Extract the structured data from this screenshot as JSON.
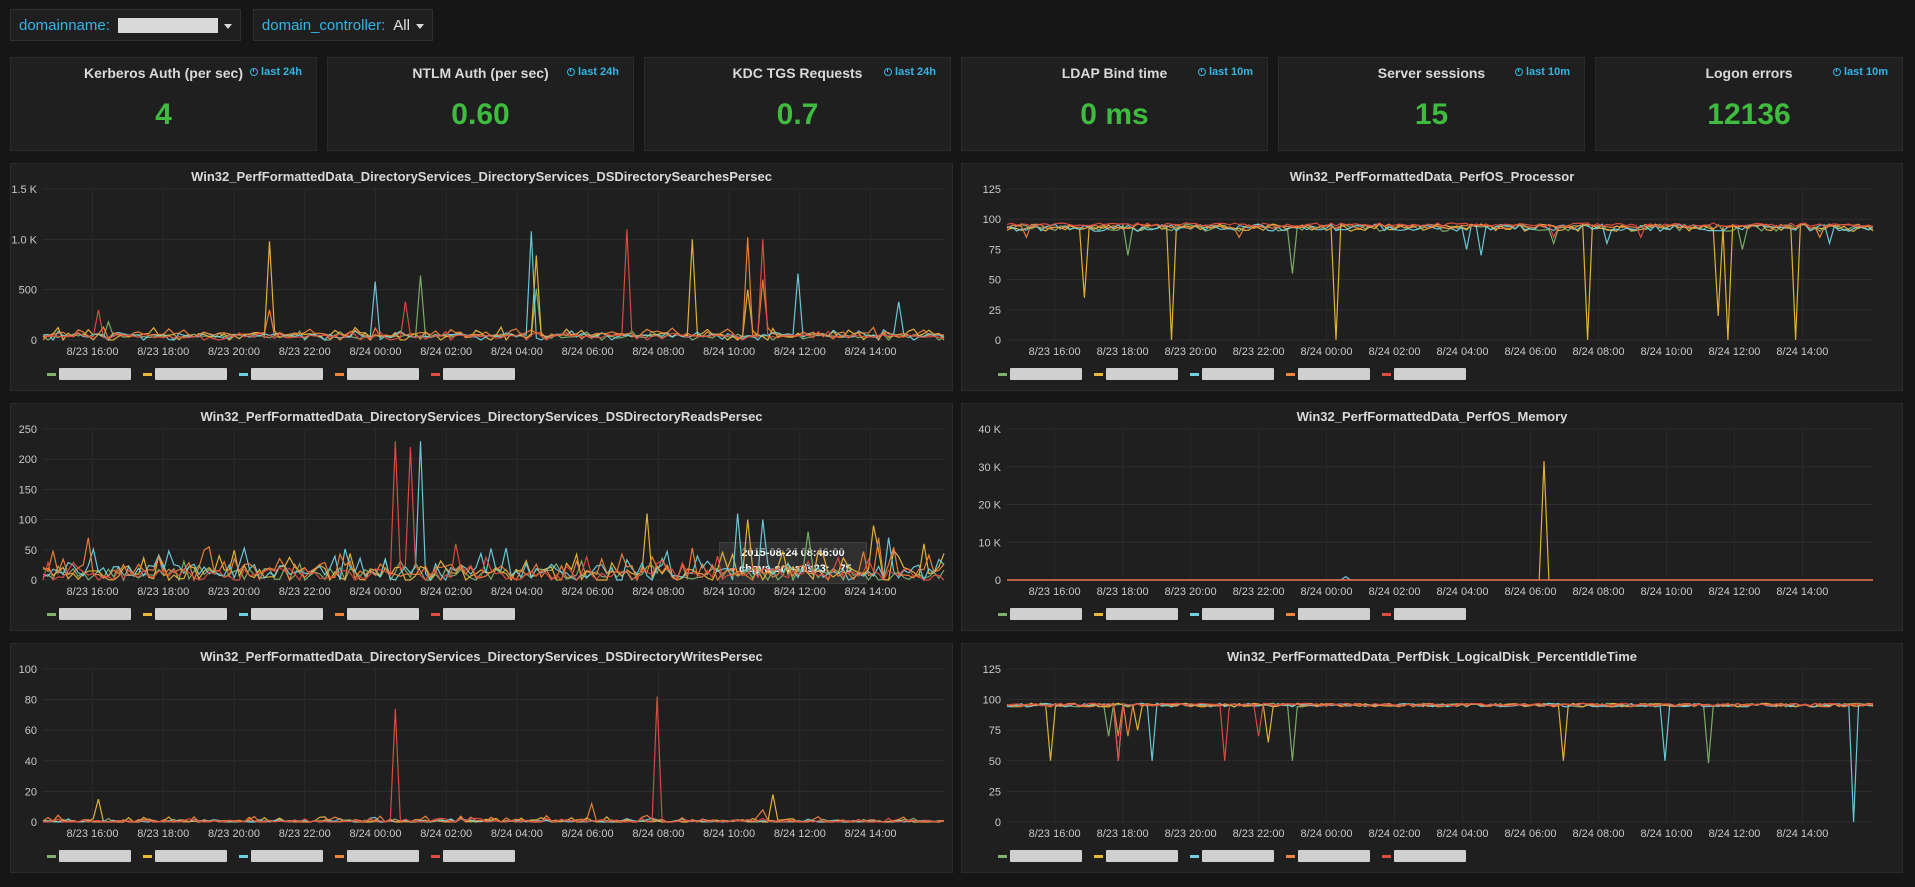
{
  "variables": [
    {
      "label": "domainname:",
      "value": ""
    },
    {
      "label": "domain_controller:",
      "value": "All"
    }
  ],
  "stats": [
    {
      "title": "Kerberos Auth (per sec)",
      "badge": "last 24h",
      "value": "4"
    },
    {
      "title": "NTLM Auth (per sec)",
      "badge": "last 24h",
      "value": "0.60"
    },
    {
      "title": "KDC TGS Requests",
      "badge": "last 24h",
      "value": "0.7"
    },
    {
      "title": "LDAP Bind time",
      "badge": "last 10m",
      "value": "0 ms"
    },
    {
      "title": "Server sessions",
      "badge": "last 10m",
      "value": "15"
    },
    {
      "title": "Logon errors",
      "badge": "last 10m",
      "value": "12136"
    }
  ],
  "colors": {
    "series": [
      "#7eb26d",
      "#eab839",
      "#6ed0e0",
      "#ef843c",
      "#e24d42"
    ],
    "stat_value": "#3fbc3f",
    "accent": "#33b5e5"
  },
  "x_ticks": [
    "8/23 16:00",
    "8/23 18:00",
    "8/23 20:00",
    "8/23 22:00",
    "8/24 00:00",
    "8/24 02:00",
    "8/24 04:00",
    "8/24 06:00",
    "8/24 08:00",
    "8/24 10:00",
    "8/24 12:00",
    "8/24 14:00"
  ],
  "graphs": [
    {
      "title": "Win32_PerfFormattedData_DirectoryServices_DirectoryServices_DSDirectorySearchesPersec",
      "y_ticks": [
        "0",
        "500",
        "1.0 K",
        "1.5 K"
      ],
      "y_max": 1500,
      "base": [
        40,
        50,
        45,
        60,
        35
      ],
      "noise": [
        60,
        80,
        60,
        70,
        50
      ],
      "spikes": [
        [
          [
            0.42,
            640
          ],
          [
            0.55,
            510
          ],
          [
            0.07,
            180
          ]
        ],
        [
          [
            0.25,
            980
          ],
          [
            0.55,
            840
          ],
          [
            0.72,
            1000
          ],
          [
            0.78,
            500
          ]
        ],
        [
          [
            0.54,
            1080
          ],
          [
            0.37,
            580
          ],
          [
            0.84,
            660
          ],
          [
            0.95,
            380
          ]
        ],
        [
          [
            0.78,
            1020
          ],
          [
            0.8,
            600
          ],
          [
            0.25,
            300
          ]
        ],
        [
          [
            0.06,
            300
          ],
          [
            0.65,
            1100
          ],
          [
            0.8,
            1000
          ],
          [
            0.4,
            380
          ]
        ]
      ]
    },
    {
      "title": "Win32_PerfFormattedData_PerfOS_Processor",
      "y_ticks": [
        "0",
        "25",
        "50",
        "75",
        "100",
        "125"
      ],
      "y_max": 125,
      "base": [
        96,
        96,
        96,
        96,
        97
      ],
      "noise": [
        6,
        6,
        6,
        4,
        3
      ],
      "dips": [
        [
          [
            0.14,
            70
          ],
          [
            0.33,
            55
          ],
          [
            0.63,
            80
          ],
          [
            0.85,
            75
          ]
        ],
        [
          [
            0.09,
            35
          ],
          [
            0.19,
            0
          ],
          [
            0.38,
            0
          ],
          [
            0.67,
            0
          ],
          [
            0.83,
            0
          ],
          [
            0.91,
            0
          ],
          [
            0.82,
            20
          ]
        ],
        [
          [
            0.53,
            75
          ],
          [
            0.69,
            80
          ],
          [
            0.55,
            70
          ],
          [
            0.95,
            80
          ]
        ],
        [
          [
            0.02,
            85
          ],
          [
            0.27,
            85
          ],
          [
            0.94,
            85
          ]
        ],
        [
          [
            0.63,
            85
          ],
          [
            0.73,
            85
          ]
        ]
      ]
    },
    {
      "title": "Win32_PerfFormattedData_DirectoryServices_DirectoryServices_DSDirectoryReadsPersec",
      "y_ticks": [
        "0",
        "50",
        "100",
        "150",
        "200",
        "250"
      ],
      "y_max": 250,
      "base": [
        10,
        12,
        15,
        15,
        10
      ],
      "noise": [
        30,
        40,
        40,
        40,
        30
      ],
      "spikes": [
        [
          [
            0.85,
            80
          ]
        ],
        [
          [
            0.67,
            110
          ],
          [
            0.78,
            100
          ],
          [
            0.92,
            90
          ],
          [
            0.98,
            60
          ]
        ],
        [
          [
            0.42,
            230
          ],
          [
            0.77,
            110
          ],
          [
            0.8,
            100
          ],
          [
            0.94,
            70
          ]
        ],
        [
          [
            0.05,
            70
          ],
          [
            0.93,
            70
          ]
        ],
        [
          [
            0.39,
            230
          ],
          [
            0.41,
            220
          ],
          [
            0.46,
            80
          ],
          [
            0.46,
            60
          ]
        ]
      ]
    },
    {
      "title": "Win32_PerfFormattedData_PerfOS_Memory",
      "y_ticks": [
        "0",
        "10 K",
        "20 K",
        "30 K",
        "40 K"
      ],
      "y_max": 40000,
      "base": [
        0,
        0,
        0,
        0,
        0
      ],
      "noise": [
        0,
        0,
        0,
        0,
        0
      ],
      "spikes": [
        [],
        [
          [
            0.62,
            31500
          ]
        ],
        [
          [
            0.39,
            900
          ]
        ],
        [],
        []
      ]
    },
    {
      "title": "Win32_PerfFormattedData_DirectoryServices_DirectoryServices_DSDirectoryWritesPersec",
      "y_ticks": [
        "0",
        "20",
        "40",
        "60",
        "80",
        "100"
      ],
      "y_max": 100,
      "base": [
        0.5,
        0.5,
        0.5,
        0.5,
        0.5
      ],
      "noise": [
        2,
        3,
        2,
        4,
        2
      ],
      "spikes": [
        [],
        [
          [
            0.06,
            15
          ],
          [
            0.81,
            18
          ]
        ],
        [
          [
            0.37,
            3
          ]
        ],
        [
          [
            0.61,
            12
          ],
          [
            0.8,
            8
          ]
        ],
        [
          [
            0.39,
            74
          ],
          [
            0.68,
            82
          ]
        ]
      ]
    },
    {
      "title": "Win32_PerfFormattedData_PerfDisk_LogicalDisk_PercentIdleTime",
      "y_ticks": [
        "0",
        "25",
        "50",
        "75",
        "100",
        "125"
      ],
      "y_max": 125,
      "base": [
        97,
        97,
        97,
        97,
        97
      ],
      "noise": [
        3,
        3,
        3,
        3,
        2
      ],
      "dips": [
        [
          [
            0.33,
            50
          ],
          [
            0.81,
            48
          ],
          [
            0.12,
            70
          ]
        ],
        [
          [
            0.05,
            50
          ],
          [
            0.3,
            65
          ],
          [
            0.15,
            75
          ],
          [
            0.64,
            50
          ]
        ],
        [
          [
            0.13,
            50
          ],
          [
            0.17,
            50
          ],
          [
            0.76,
            50
          ],
          [
            0.98,
            0
          ]
        ],
        [
          [
            0.13,
            70
          ],
          [
            0.14,
            70
          ]
        ],
        [
          [
            0.13,
            50
          ],
          [
            0.25,
            50
          ],
          [
            0.29,
            70
          ]
        ]
      ]
    }
  ],
  "tooltip": {
    "time": "2015-08-24 08:46:00",
    "series": "chgva-srv-ads23:",
    "value": "75"
  }
}
